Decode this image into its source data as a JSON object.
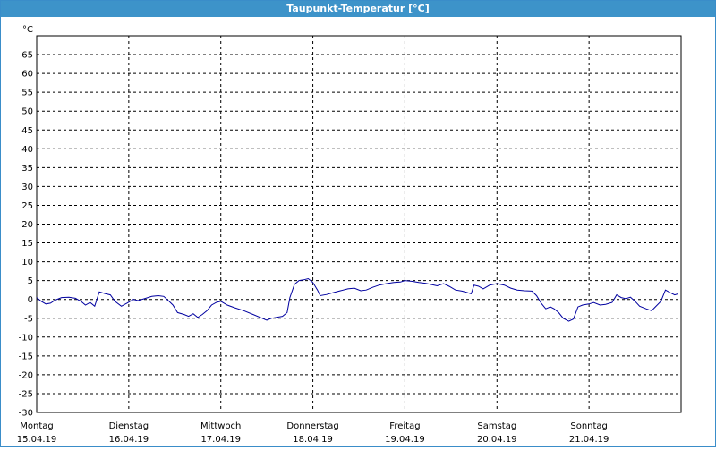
{
  "window": {
    "title": "Taupunkt-Temperatur [°C]"
  },
  "chart_data": {
    "type": "line",
    "title": "Taupunkt-Temperatur [°C]",
    "ylabel": "°C",
    "xlabel": "",
    "ylim": [
      -30,
      70
    ],
    "xlim": [
      0,
      7
    ],
    "y_ticks": [
      -30,
      -25,
      -20,
      -15,
      -10,
      -5,
      0,
      5,
      10,
      15,
      20,
      25,
      30,
      35,
      40,
      45,
      50,
      55,
      60,
      65
    ],
    "grid": true,
    "x_ticks": [
      {
        "day": "Montag",
        "date": "15.04.19",
        "x": 0
      },
      {
        "day": "Dienstag",
        "date": "16.04.19",
        "x": 1
      },
      {
        "day": "Mittwoch",
        "date": "17.04.19",
        "x": 2
      },
      {
        "day": "Donnerstag",
        "date": "18.04.19",
        "x": 3
      },
      {
        "day": "Freitag",
        "date": "19.04.19",
        "x": 4
      },
      {
        "day": "Samstag",
        "date": "20.04.19",
        "x": 5
      },
      {
        "day": "Sonntag",
        "date": "21.04.19",
        "x": 6
      }
    ],
    "series": [
      {
        "color": "#0000a0",
        "points": [
          [
            0.0,
            0.5
          ],
          [
            0.05,
            -0.5
          ],
          [
            0.1,
            -1.2
          ],
          [
            0.15,
            -1.0
          ],
          [
            0.2,
            -0.2
          ],
          [
            0.27,
            0.5
          ],
          [
            0.35,
            0.6
          ],
          [
            0.42,
            0.3
          ],
          [
            0.48,
            -0.5
          ],
          [
            0.53,
            -1.5
          ],
          [
            0.58,
            -0.8
          ],
          [
            0.63,
            -1.8
          ],
          [
            0.68,
            2.0
          ],
          [
            0.75,
            1.5
          ],
          [
            0.8,
            1.2
          ],
          [
            0.85,
            -0.5
          ],
          [
            0.92,
            -1.8
          ],
          [
            0.98,
            -1.0
          ],
          [
            1.05,
            0.0
          ],
          [
            1.1,
            -0.3
          ],
          [
            1.17,
            0.2
          ],
          [
            1.25,
            0.8
          ],
          [
            1.32,
            1.0
          ],
          [
            1.38,
            0.8
          ],
          [
            1.43,
            -0.3
          ],
          [
            1.48,
            -1.5
          ],
          [
            1.53,
            -3.5
          ],
          [
            1.6,
            -4.0
          ],
          [
            1.65,
            -4.5
          ],
          [
            1.7,
            -3.8
          ],
          [
            1.75,
            -4.8
          ],
          [
            1.8,
            -4.0
          ],
          [
            1.85,
            -3.0
          ],
          [
            1.9,
            -1.5
          ],
          [
            1.95,
            -0.8
          ],
          [
            2.0,
            -0.5
          ],
          [
            2.07,
            -1.5
          ],
          [
            2.15,
            -2.2
          ],
          [
            2.25,
            -3.0
          ],
          [
            2.35,
            -4.0
          ],
          [
            2.45,
            -5.0
          ],
          [
            2.5,
            -5.5
          ],
          [
            2.55,
            -5.0
          ],
          [
            2.6,
            -4.8
          ],
          [
            2.67,
            -4.5
          ],
          [
            2.72,
            -3.5
          ],
          [
            2.75,
            0.5
          ],
          [
            2.8,
            4.0
          ],
          [
            2.85,
            5.0
          ],
          [
            2.9,
            5.2
          ],
          [
            2.95,
            5.5
          ],
          [
            3.0,
            4.5
          ],
          [
            3.05,
            2.5
          ],
          [
            3.08,
            1.0
          ],
          [
            3.15,
            1.3
          ],
          [
            3.22,
            1.8
          ],
          [
            3.3,
            2.3
          ],
          [
            3.38,
            2.8
          ],
          [
            3.45,
            3.0
          ],
          [
            3.52,
            2.3
          ],
          [
            3.58,
            2.5
          ],
          [
            3.65,
            3.2
          ],
          [
            3.72,
            3.8
          ],
          [
            3.8,
            4.2
          ],
          [
            3.88,
            4.5
          ],
          [
            3.95,
            4.6
          ],
          [
            4.0,
            5.0
          ],
          [
            4.08,
            4.8
          ],
          [
            4.15,
            4.5
          ],
          [
            4.22,
            4.3
          ],
          [
            4.28,
            4.0
          ],
          [
            4.35,
            3.6
          ],
          [
            4.42,
            4.2
          ],
          [
            4.48,
            3.5
          ],
          [
            4.55,
            2.5
          ],
          [
            4.62,
            2.2
          ],
          [
            4.68,
            1.8
          ],
          [
            4.72,
            1.5
          ],
          [
            4.75,
            3.8
          ],
          [
            4.8,
            3.5
          ],
          [
            4.85,
            2.8
          ],
          [
            4.92,
            3.8
          ],
          [
            5.0,
            4.2
          ],
          [
            5.08,
            3.8
          ],
          [
            5.15,
            3.0
          ],
          [
            5.22,
            2.5
          ],
          [
            5.3,
            2.3
          ],
          [
            5.38,
            2.2
          ],
          [
            5.43,
            1.0
          ],
          [
            5.48,
            -1.0
          ],
          [
            5.53,
            -2.5
          ],
          [
            5.58,
            -2.0
          ],
          [
            5.62,
            -2.5
          ],
          [
            5.67,
            -3.5
          ],
          [
            5.72,
            -5.0
          ],
          [
            5.78,
            -5.8
          ],
          [
            5.83,
            -5.2
          ],
          [
            5.88,
            -2.0
          ],
          [
            5.93,
            -1.5
          ],
          [
            6.0,
            -1.2
          ],
          [
            6.05,
            -0.8
          ],
          [
            6.12,
            -1.5
          ],
          [
            6.18,
            -1.3
          ],
          [
            6.25,
            -0.8
          ],
          [
            6.3,
            1.2
          ],
          [
            6.35,
            0.5
          ],
          [
            6.4,
            0.2
          ],
          [
            6.45,
            0.6
          ],
          [
            6.5,
            -0.5
          ],
          [
            6.55,
            -1.8
          ],
          [
            6.62,
            -2.5
          ],
          [
            6.68,
            -3.0
          ],
          [
            6.72,
            -2.0
          ],
          [
            6.78,
            -0.5
          ],
          [
            6.83,
            2.5
          ],
          [
            6.88,
            1.8
          ],
          [
            6.93,
            1.2
          ],
          [
            6.97,
            1.5
          ]
        ]
      }
    ]
  }
}
